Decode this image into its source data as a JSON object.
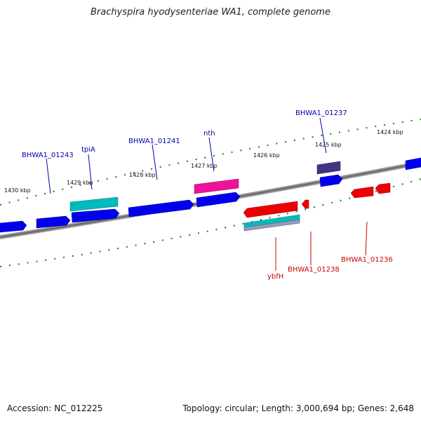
{
  "header": {
    "title": "Brachyspira hyodysenteriae WA1, complete genome"
  },
  "footer": {
    "accession": "Accession: NC_012225",
    "summary": "Topology: circular; Length: 3,000,694 bp; Genes: 2,648"
  },
  "ticks": [
    "1430 kbp",
    "1429 kbp",
    "1428 kbp",
    "1427 kbp",
    "1426 kbp",
    "1425 kbp",
    "1424 kbp"
  ],
  "gene_labels": [
    "BHWA1_01243",
    "tpiA",
    "BHWA1_01241",
    "nth",
    "BHWA1_01237",
    "ybfH",
    "BHWA1_01238",
    "BHWA1_01236"
  ],
  "colors": {
    "forward": "#0000ee",
    "reverse": "#ee0000",
    "teal": "#00bbbb",
    "magenta": "#ee1199",
    "navy": "#443388",
    "tick": "#1a7a1a",
    "backbone": "#777777",
    "label_forward": "#0000aa",
    "label_reverse": "#cc0000"
  }
}
